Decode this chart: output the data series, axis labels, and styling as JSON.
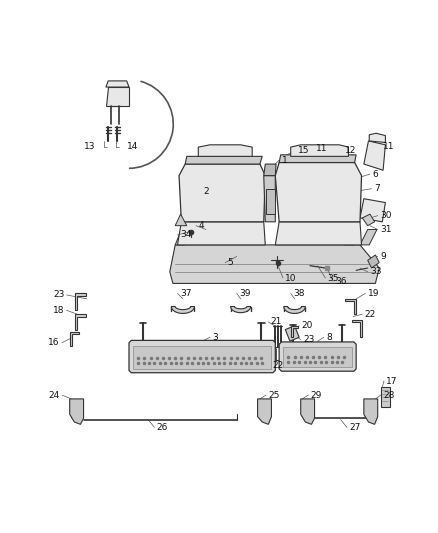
{
  "bg_color": "#ffffff",
  "fig_width": 4.38,
  "fig_height": 5.33,
  "dpi": 100,
  "line_color": "#333333",
  "leader_color": "#555555",
  "fill_light": "#e8e8e8",
  "fill_mid": "#cccccc",
  "fill_dark": "#aaaaaa"
}
